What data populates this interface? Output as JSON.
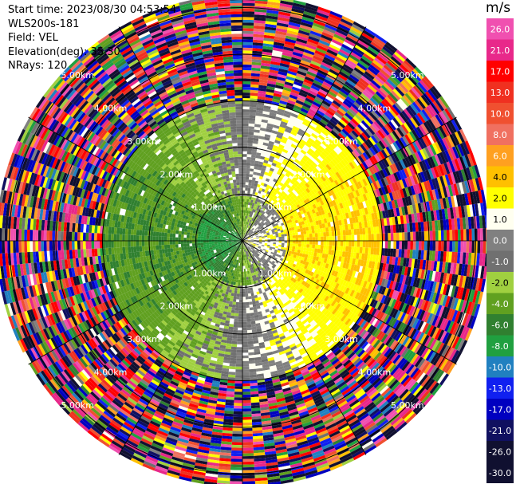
{
  "header": {
    "start_time": "Start time: 2023/08/30 04:53:54",
    "instrument": "WLS200s-181",
    "field": "Field: VEL",
    "elevation": "Elevation(deg): 35.30",
    "nrays": "NRays: 120"
  },
  "colorbar": {
    "unit": "m/s",
    "bins": [
      {
        "label": "26.0",
        "color": "#f050b0"
      },
      {
        "label": "21.0",
        "color": "#e8288a"
      },
      {
        "label": "17.0",
        "color": "#ff0000"
      },
      {
        "label": "13.0",
        "color": "#f03020"
      },
      {
        "label": "10.0",
        "color": "#f05030"
      },
      {
        "label": "8.0",
        "color": "#f07060"
      },
      {
        "label": "6.0",
        "color": "#ffa020"
      },
      {
        "label": "4.0",
        "color": "#ffc000"
      },
      {
        "label": "2.0",
        "color": "#ffff00"
      },
      {
        "label": "1.0",
        "color": "#fffff0"
      },
      {
        "label": "0.0",
        "color": "#808080"
      },
      {
        "label": "-1.0",
        "color": "#707070"
      },
      {
        "label": "-2.0",
        "color": "#a0d040"
      },
      {
        "label": "-4.0",
        "color": "#60a020"
      },
      {
        "label": "-6.0",
        "color": "#308030"
      },
      {
        "label": "-8.0",
        "color": "#20a040"
      },
      {
        "label": "-10.0",
        "color": "#2080c0"
      },
      {
        "label": "-13.0",
        "color": "#1020f0"
      },
      {
        "label": "-17.0",
        "color": "#0000c0"
      },
      {
        "label": "-21.0",
        "color": "#101060"
      },
      {
        "label": "-26.0",
        "color": "#101030"
      },
      {
        "label": "-30.0",
        "color": "#101030"
      }
    ]
  },
  "chart_data": {
    "type": "heatmap",
    "subtype": "radar-ppi",
    "field": "VEL",
    "nrays": 120,
    "range_rings_km": [
      1,
      2,
      3,
      4,
      5
    ],
    "range_labels": [
      "1.00km",
      "2.00km",
      "3.00km",
      "4.00km",
      "5.00km"
    ],
    "max_range_km": 5.3,
    "value_range": [
      -30,
      26
    ],
    "pattern": "near range: negative velocities (green) to the west, positive (yellow) to the east; beyond ~3 km noisy values spanning the full scale"
  }
}
